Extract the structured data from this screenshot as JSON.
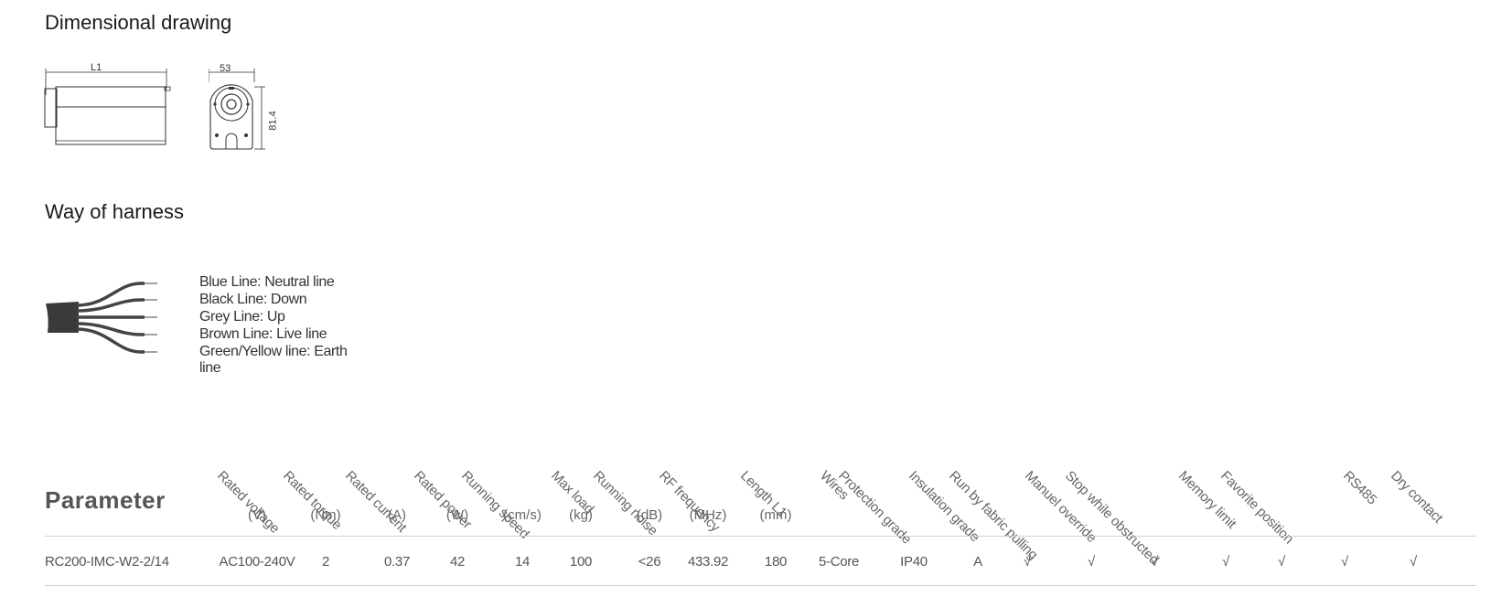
{
  "sections": {
    "dimensional_drawing": "Dimensional drawing",
    "way_of_harness": "Way of harness",
    "parameter": "Parameter"
  },
  "drawing": {
    "side_label": "L1",
    "front_width": "53",
    "front_height": "81.4"
  },
  "harness": {
    "wires": [
      "Blue Line: Neutral line",
      "Black Line: Down",
      "Grey Line: Up",
      "Brown Line: Live line",
      "Green/Yellow line: Earth line"
    ]
  },
  "table": {
    "headers": [
      {
        "label": "Rated voltage",
        "unit": "(V)"
      },
      {
        "label": "Rated torque",
        "unit": "(Nm)"
      },
      {
        "label": "Rated current",
        "unit": "(A)"
      },
      {
        "label": "Rated power",
        "unit": "(W)"
      },
      {
        "label": "Running speed",
        "unit": "(cm/s)"
      },
      {
        "label": "Max load",
        "unit": "(kg)"
      },
      {
        "label": "Running noise",
        "unit": "(dB)"
      },
      {
        "label": "RF frequency",
        "unit": "(MHz)"
      },
      {
        "label": "Length L1",
        "unit": "(mm)"
      },
      {
        "label": "Wires",
        "unit": ""
      },
      {
        "label": "Protection grade",
        "unit": ""
      },
      {
        "label": "Insulation grade",
        "unit": ""
      },
      {
        "label": "Run by fabric pulling",
        "unit": ""
      },
      {
        "label": "Manuel override",
        "unit": ""
      },
      {
        "label": "Stop while obstructed",
        "unit": ""
      },
      {
        "label": "Memory limit",
        "unit": ""
      },
      {
        "label": "Favorite position",
        "unit": ""
      },
      {
        "label": "RS485",
        "unit": ""
      },
      {
        "label": "Dry contact",
        "unit": ""
      }
    ],
    "row": {
      "model": "RC200-IMC-W2-2/14",
      "values": [
        "AC100-240V",
        "2",
        "0.37",
        "42",
        "14",
        "100",
        "<26",
        "433.92",
        "180",
        "5-Core",
        "IP40",
        "A",
        "√",
        "√",
        "√",
        "√",
        "√",
        "√",
        "√"
      ]
    }
  }
}
